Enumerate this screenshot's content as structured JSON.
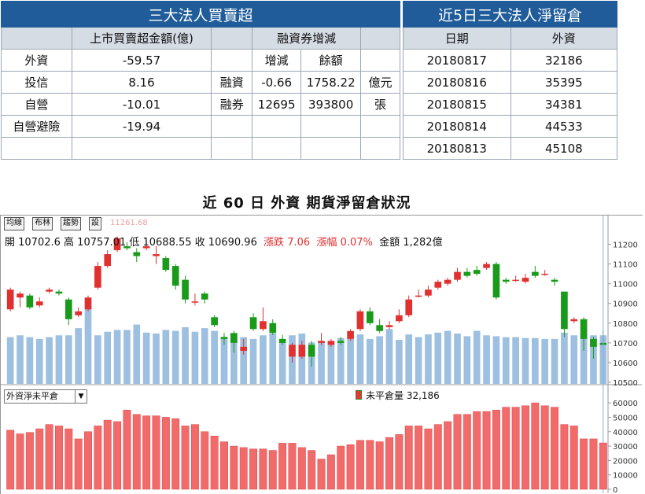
{
  "institutional": {
    "title": "三大法人買賣超",
    "col_amount": "上市買賣超金額(億)",
    "col_margin": "融資券增減",
    "sub_change": "增減",
    "sub_balance": "餘額",
    "rows": [
      {
        "name": "外資",
        "amount": "-59.57",
        "margin_label": "",
        "change": "",
        "balance": "",
        "unit": ""
      },
      {
        "name": "投信",
        "amount": "8.16",
        "margin_label": "融資",
        "change": "-0.66",
        "balance": "1758.22",
        "unit": "億元"
      },
      {
        "name": "自營",
        "amount": "-10.01",
        "margin_label": "融券",
        "change": "12695",
        "balance": "393800",
        "unit": "張"
      },
      {
        "name": "自營避險",
        "amount": "-19.94",
        "margin_label": "",
        "change": "",
        "balance": "",
        "unit": ""
      },
      {
        "name": "",
        "amount": "",
        "margin_label": "",
        "change": "",
        "balance": "",
        "unit": ""
      }
    ]
  },
  "retention": {
    "title": "近5日三大法人淨留倉",
    "col_date": "日期",
    "col_foreign": "外資",
    "rows": [
      {
        "date": "20180817",
        "value": "32186"
      },
      {
        "date": "20180816",
        "value": "35395"
      },
      {
        "date": "20180815",
        "value": "34381"
      },
      {
        "date": "20180814",
        "value": "44533"
      },
      {
        "date": "20180813",
        "value": "45108"
      }
    ]
  },
  "chart_title": "近 60 日 外資 期貨淨留倉狀況",
  "toolbar": {
    "btn1": "均線",
    "btn2": "布林",
    "btn3": "趨勢",
    "btn4": "設"
  },
  "ghost_value": "11261.68",
  "info": {
    "open": "開 10702.6",
    "high": "高 10757.01",
    "low": "低 10688.55",
    "close": "收 10690.96",
    "change": "漲跌 7.06",
    "pct": "漲幅 0.07%",
    "amount": "金額 1,282億"
  },
  "indicator_select": "外資淨未平倉",
  "indicator_legend": "未平倉量 32,186",
  "colors": {
    "up": "#e03030",
    "down": "#1a9a1a",
    "volume": "#9dbfe0",
    "oi": "#f26b6b"
  },
  "chart_data": [
    {
      "type": "candlestick",
      "ylim": [
        10500,
        11250
      ],
      "yticks": [
        11200,
        11100,
        11000,
        10900,
        10800,
        10700,
        10600,
        10500
      ],
      "candles": [
        [
          10870,
          10970,
          10860,
          10980
        ],
        [
          10930,
          10950,
          10880,
          10960
        ],
        [
          10940,
          10880,
          10870,
          10950
        ],
        [
          10890,
          10910,
          10880,
          10930
        ],
        [
          10960,
          10970,
          10950,
          10980
        ],
        [
          10960,
          10950,
          10940,
          10970
        ],
        [
          10920,
          10820,
          10790,
          10930
        ],
        [
          10840,
          10860,
          10830,
          10880
        ],
        [
          10870,
          10930,
          10860,
          10940
        ],
        [
          10980,
          11090,
          10970,
          11110
        ],
        [
          11090,
          11150,
          11080,
          11170
        ],
        [
          11170,
          11230,
          11160,
          11240
        ],
        [
          11190,
          11180,
          11170,
          11210
        ],
        [
          11160,
          11140,
          11110,
          11180
        ],
        [
          11180,
          11190,
          11170,
          11220
        ],
        [
          11140,
          11150,
          11100,
          11190
        ],
        [
          11130,
          11070,
          11060,
          11140
        ],
        [
          11090,
          10990,
          10970,
          11100
        ],
        [
          11020,
          10920,
          10900,
          11040
        ],
        [
          10910,
          10910,
          10890,
          10950
        ],
        [
          10950,
          10920,
          10900,
          10960
        ],
        [
          10830,
          10790,
          10780,
          10840
        ],
        [
          10730,
          10720,
          10690,
          10750
        ],
        [
          10750,
          10700,
          10650,
          10760
        ],
        [
          10660,
          10680,
          10640,
          10720
        ],
        [
          10830,
          10770,
          10760,
          10850
        ],
        [
          10770,
          10810,
          10760,
          10880
        ],
        [
          10800,
          10750,
          10740,
          10820
        ],
        [
          10720,
          10700,
          10690,
          10740
        ],
        [
          10630,
          10690,
          10600,
          10700
        ],
        [
          10630,
          10690,
          10620,
          10710
        ],
        [
          10690,
          10630,
          10580,
          10710
        ],
        [
          10700,
          10710,
          10690,
          10750
        ],
        [
          10690,
          10710,
          10680,
          10720
        ],
        [
          10710,
          10700,
          10690,
          10730
        ],
        [
          10720,
          10760,
          10710,
          10770
        ],
        [
          10770,
          10860,
          10760,
          10870
        ],
        [
          10860,
          10800,
          10790,
          10880
        ],
        [
          10790,
          10760,
          10750,
          10820
        ],
        [
          10780,
          10790,
          10770,
          10810
        ],
        [
          10810,
          10840,
          10800,
          10870
        ],
        [
          10840,
          10920,
          10830,
          10940
        ],
        [
          10940,
          10940,
          10930,
          10970
        ],
        [
          10940,
          10970,
          10930,
          10990
        ],
        [
          10980,
          11010,
          10970,
          11020
        ],
        [
          11000,
          11020,
          10990,
          11030
        ],
        [
          11020,
          11060,
          11010,
          11080
        ],
        [
          11060,
          11040,
          11030,
          11080
        ],
        [
          11070,
          11050,
          11040,
          11090
        ],
        [
          11080,
          11100,
          11070,
          11110
        ],
        [
          11100,
          10930,
          10920,
          11110
        ],
        [
          11020,
          11010,
          11000,
          11030
        ],
        [
          11020,
          11020,
          11010,
          11040
        ],
        [
          11010,
          11030,
          11000,
          11050
        ],
        [
          11060,
          11040,
          11030,
          11090
        ],
        [
          11050,
          11050,
          11040,
          11070
        ],
        [
          11020,
          11010,
          10990,
          11030
        ],
        [
          10960,
          10770,
          10730,
          10960
        ],
        [
          10810,
          10820,
          10800,
          10830
        ],
        [
          10820,
          10720,
          10660,
          10830
        ],
        [
          10720,
          10680,
          10620,
          10730
        ],
        [
          10700,
          10690,
          10690,
          10760
        ]
      ],
      "volume": [
        52,
        54,
        52,
        50,
        52,
        54,
        54,
        62,
        87,
        54,
        58,
        60,
        60,
        66,
        57,
        56,
        60,
        59,
        63,
        58,
        62,
        59,
        52,
        55,
        52,
        50,
        54,
        56,
        50,
        54,
        56,
        46,
        47,
        46,
        51,
        50,
        55,
        50,
        53,
        61,
        49,
        55,
        52,
        55,
        57,
        59,
        56,
        53,
        59,
        54,
        53,
        52,
        52,
        51,
        51,
        50,
        50,
        57,
        54,
        54,
        54,
        54
      ]
    },
    {
      "type": "bar",
      "name": "未平倉量",
      "ylim": [
        0,
        65000
      ],
      "yticks": [
        60000,
        50000,
        40000,
        30000,
        20000,
        10000,
        0
      ],
      "values": [
        41000,
        38500,
        39500,
        42000,
        45000,
        44000,
        42000,
        35000,
        40000,
        44000,
        48000,
        47000,
        55000,
        52000,
        51000,
        51000,
        50000,
        49000,
        44000,
        45000,
        40000,
        37000,
        33000,
        30000,
        29000,
        28000,
        28000,
        27000,
        32000,
        32000,
        29000,
        27000,
        21000,
        24000,
        30000,
        31000,
        34000,
        34000,
        33000,
        36000,
        38000,
        44000,
        44000,
        42000,
        45000,
        47000,
        52000,
        52000,
        54000,
        54000,
        55000,
        57000,
        57000,
        58000,
        60000,
        58000,
        57000,
        45000,
        44000,
        35000,
        35000,
        32186
      ]
    }
  ]
}
